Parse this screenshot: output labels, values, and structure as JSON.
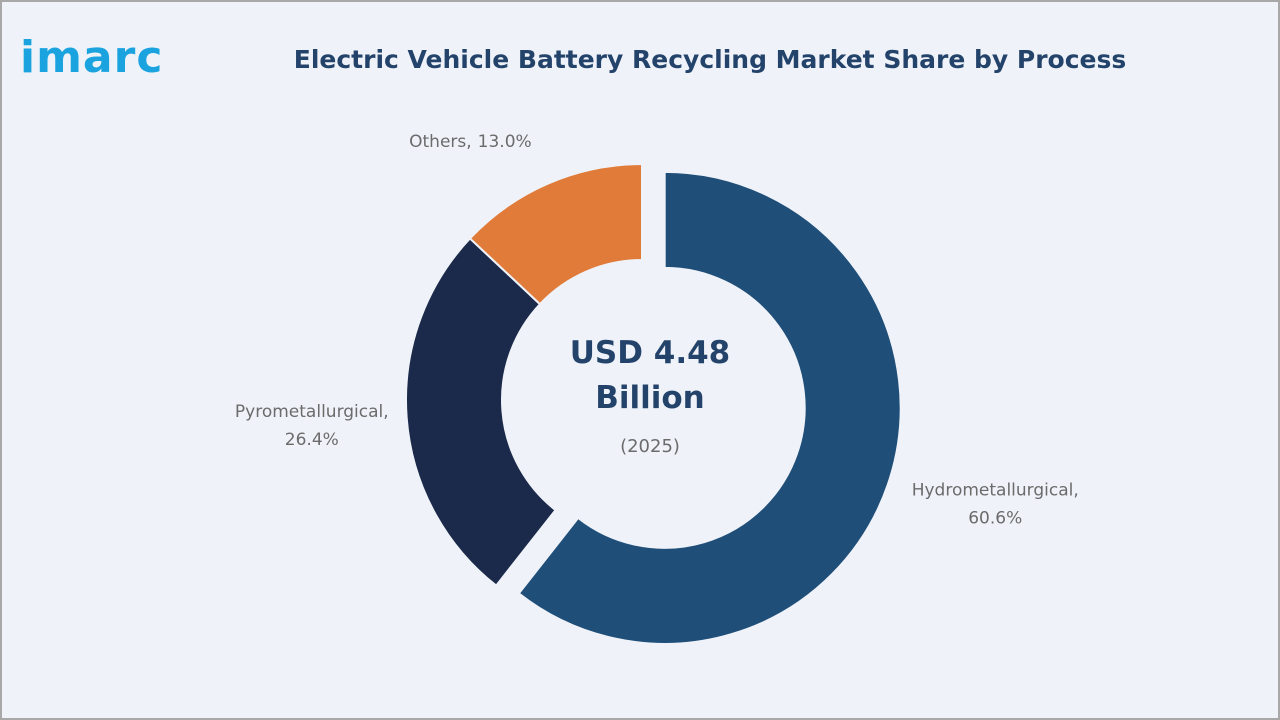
{
  "logo": "imarc",
  "chart_data": {
    "type": "donut",
    "title": "Electric Vehicle Battery Recycling Market Share by Process",
    "categories": [
      "Hydrometallurgical,",
      "Pyrometallurgical,",
      "Others,"
    ],
    "values": [
      60.6,
      26.4,
      13.0
    ],
    "value_labels": [
      "60.6%",
      "26.4%",
      "13.0%"
    ],
    "colors": [
      "#1f4e79",
      "#1b2a4a",
      "#e07b39"
    ],
    "exploded": [
      true,
      false,
      false
    ],
    "center_label": [
      "USD 4.48",
      "Billion"
    ],
    "center_note": "(2025)"
  }
}
